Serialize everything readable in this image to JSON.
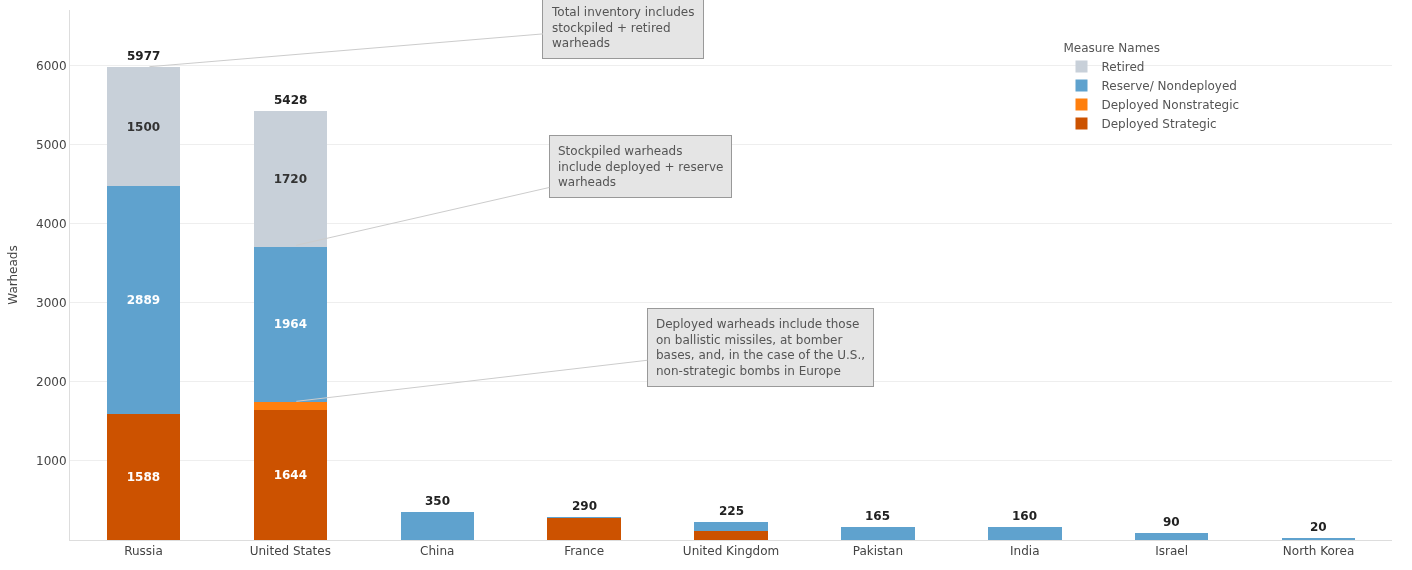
{
  "chart_data": {
    "type": "bar",
    "stacked": true,
    "ylabel": "Warheads",
    "legend_title": "Measure Names",
    "legend": "top right",
    "grid": "y",
    "categories": [
      "Russia",
      "United States",
      "China",
      "France",
      "United Kingdom",
      "Pakistan",
      "India",
      "Israel",
      "North Korea"
    ],
    "series": [
      {
        "name": "Deployed Strategic",
        "color": "#cc5200",
        "values": [
          1588,
          1644,
          0,
          280,
          120,
          0,
          0,
          0,
          0
        ],
        "value_labels": [
          "1588",
          "1644",
          null,
          null,
          null,
          null,
          null,
          null,
          null
        ]
      },
      {
        "name": "Deployed Nonstrategic",
        "color": "#ff7f0e",
        "values": [
          0,
          100,
          0,
          0,
          0,
          0,
          0,
          0,
          0
        ],
        "value_labels": [
          null,
          null,
          null,
          null,
          null,
          null,
          null,
          null,
          null
        ]
      },
      {
        "name": "Reserve/ Nondeployed",
        "color": "#5fa2ce",
        "values": [
          2889,
          1964,
          350,
          10,
          105,
          165,
          160,
          90,
          20
        ],
        "value_labels": [
          "2889",
          "1964",
          null,
          null,
          null,
          null,
          null,
          null,
          null
        ]
      },
      {
        "name": "Retired",
        "color": "#c8d0d9",
        "values": [
          1500,
          1720,
          0,
          0,
          0,
          0,
          0,
          0,
          0
        ],
        "value_labels": [
          "1500",
          "1720",
          null,
          null,
          null,
          null,
          null,
          null,
          null
        ]
      }
    ],
    "totals": [
      "5977",
      "5428",
      "350",
      "290",
      "225",
      "165",
      "160",
      "90",
      "20"
    ],
    "ylim": [
      0,
      6700
    ],
    "yticks": [
      1000,
      2000,
      3000,
      4000,
      5000,
      6000
    ],
    "annotations": [
      {
        "text": "Total inventory includes\nstockpiled + retired\nwarheads",
        "x": "Russia",
        "y": 5977
      },
      {
        "text": "Stockpiled warheads\ninclude deployed + reserve\nwarheads",
        "x": "United States",
        "y": 3708
      },
      {
        "text": "Deployed warheads include those\non ballistic missiles, at bomber\nbases, and, in the case of the U.S.,\nnon-strategic bombs in Europe",
        "x": "United States",
        "y": 1744
      }
    ]
  }
}
